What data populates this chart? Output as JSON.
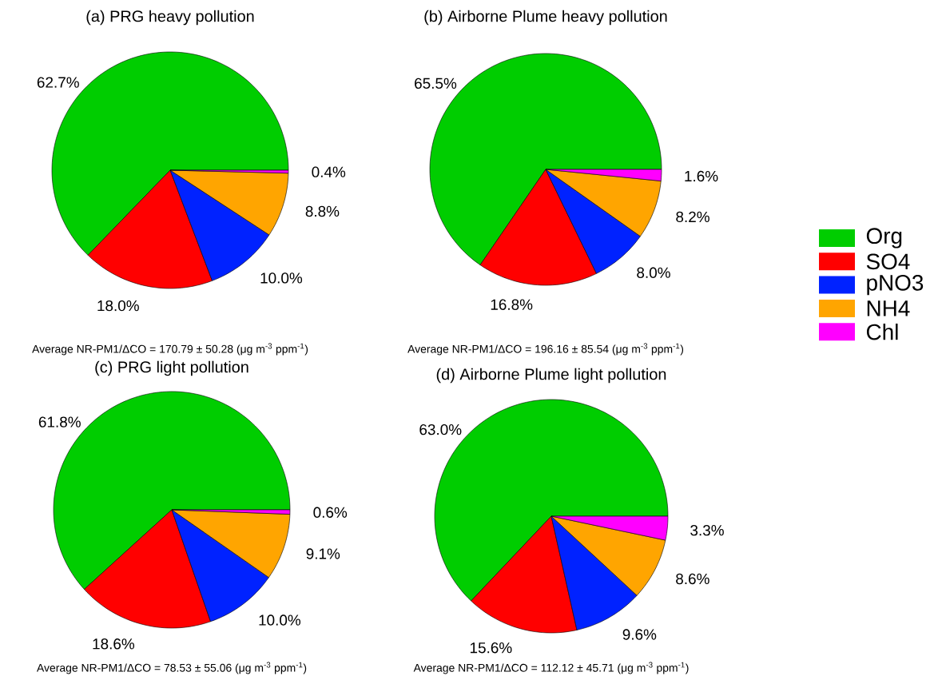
{
  "chart_data": [
    {
      "type": "pie",
      "title": "(a) PRG heavy pollution",
      "categories": [
        "Org",
        "SO4",
        "pNO3",
        "NH4",
        "Chl"
      ],
      "values": [
        62.7,
        18.0,
        10.0,
        8.8,
        0.4
      ],
      "colors": [
        "#00cd00",
        "#ff0000",
        "#0022ff",
        "#ffa500",
        "#ff00ff"
      ],
      "value_labels": [
        "62.7%",
        "18.0%",
        "10.0%",
        "8.8%",
        "0.4%"
      ],
      "annotations": [
        "Average NR-PM1/ΔCO = 170.79 ± 50.28 (μg m$^{-3}$ ppm$^{-1}$)"
      ],
      "legend": "right"
    },
    {
      "type": "pie",
      "title": "(b) Airborne Plume heavy pollution",
      "categories": [
        null,
        null,
        null,
        null,
        null
      ],
      "values": [
        65.5,
        16.8,
        8.0,
        8.2,
        1.6
      ],
      "colors": [
        "#00cd00",
        "#ff0000",
        "#0022ff",
        "#ffa500",
        "#ff00ff"
      ],
      "value_labels": [
        "65.5%",
        "16.8%",
        "8.0%",
        "8.2%",
        "1.6%"
      ],
      "annotations": [
        "Average NR-PM1/ΔCO = 196.16 ± 85.54 (μg m$^{-3}$ ppm$^{-1}$)"
      ]
    },
    {
      "type": "pie",
      "title": "(c) PRG light pollution",
      "categories": [
        null,
        null,
        null,
        null,
        null
      ],
      "values": [
        61.8,
        18.6,
        10.0,
        9.1,
        0.6
      ],
      "colors": [
        "#00cd00",
        "#ff0000",
        "#0022ff",
        "#ffa500",
        "#ff00ff"
      ],
      "value_labels": [
        "61.8%",
        "18.6%",
        "10.0%",
        "9.1%",
        "0.6%"
      ],
      "annotations": [
        "Average NR-PM1/ΔCO = 78.53 ± 55.06 (μg m$^{-3}$ ppm$^{-1}$)"
      ]
    },
    {
      "type": "pie",
      "title": "(d) Airborne Plume light pollution",
      "categories": [
        null,
        null,
        null,
        null,
        null
      ],
      "values": [
        63.0,
        15.6,
        9.6,
        8.6,
        3.3
      ],
      "colors": [
        "#00cd00",
        "#ff0000",
        "#0022ff",
        "#ffa500",
        "#ff00ff"
      ],
      "value_labels": [
        "63.0%",
        "15.6%",
        "9.6%",
        "8.6%",
        "3.3%"
      ],
      "annotations": [
        "Average NR-PM1/ΔCO = 112.12 ± 45.71 (μg m$^{-3}$ ppm$^{-1}$)"
      ]
    }
  ]
}
